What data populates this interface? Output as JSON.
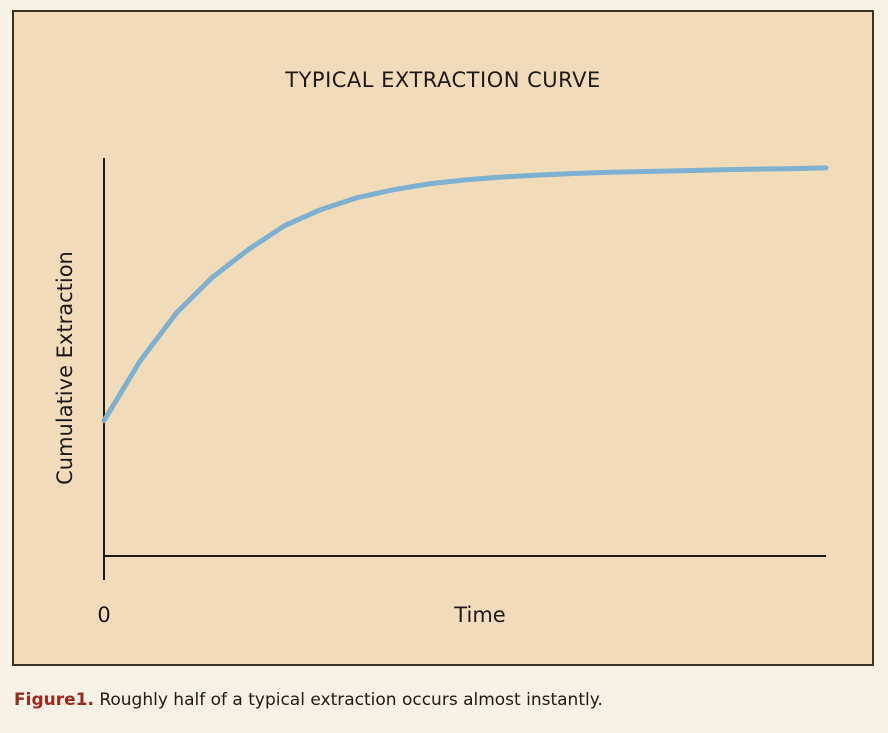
{
  "chart_data": {
    "type": "line",
    "title": "TYPICAL EXTRACTION CURVE",
    "xlabel": "Time",
    "ylabel": "Cumulative Extraction",
    "x_tick_labels": [
      "0"
    ],
    "xlim": [
      0,
      1
    ],
    "ylim": [
      0,
      1
    ],
    "grid": false,
    "series": [
      {
        "color": "#7fb0cf",
        "x": [
          0,
          0.05,
          0.1,
          0.15,
          0.2,
          0.25,
          0.3,
          0.35,
          0.4,
          0.45,
          0.5,
          0.55,
          0.6,
          0.65,
          0.7,
          0.75,
          0.8,
          0.85,
          0.9,
          0.95,
          1.0
        ],
        "y": [
          0.34,
          0.49,
          0.61,
          0.7,
          0.77,
          0.83,
          0.87,
          0.9,
          0.92,
          0.935,
          0.945,
          0.952,
          0.957,
          0.961,
          0.964,
          0.966,
          0.968,
          0.97,
          0.972,
          0.973,
          0.975
        ]
      }
    ]
  },
  "caption": {
    "label": "Figure1.",
    "text": " Roughly half of a typical extraction occurs almost instantly."
  }
}
